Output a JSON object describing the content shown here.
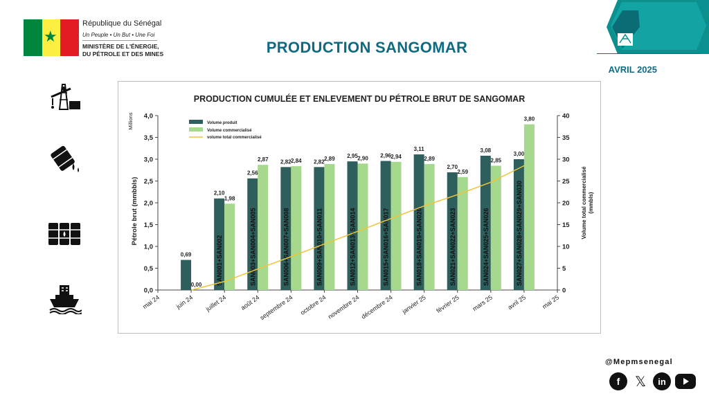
{
  "header": {
    "republic": "République du Sénégal",
    "motto": "Un Peuple • Un But • Une Foi",
    "ministry_line1": "MINISTÈRE DE L'ÉNERGIE,",
    "ministry_line2": "DU PÉTROLE ET DES MINES",
    "title": "PRODUCTION SANGOMAR",
    "date": "AVRIL 2025"
  },
  "colors": {
    "accent": "#0f6b84",
    "produced": "#2e5f5c",
    "sold": "#a6d98e",
    "cumulative": "#f0c43a",
    "flag_green": "#00853f",
    "flag_yellow": "#fdef42",
    "flag_red": "#e31b23"
  },
  "icons": [
    "oil-pump-icon",
    "oil-barrel-spill-icon",
    "oil-barrels-icon",
    "tanker-ship-icon"
  ],
  "footer": {
    "handle": "@Mepmsenegal",
    "social": [
      "facebook-icon",
      "x-icon",
      "linkedin-icon",
      "youtube-icon"
    ],
    "linkedin_glyph": "in"
  },
  "chart_data": {
    "type": "bar",
    "title": "PRODUCTION CUMULÉE ET ENLEVEMENT DU PÉTROLE BRUT DE SANGOMAR",
    "ylabel": "Pétrole brut  (mmbbls)",
    "y_multiplier": "Millions",
    "y2label_line1": "Volume total commercialisé",
    "y2label_line2": "(mmbls)",
    "ylim": [
      0,
      4
    ],
    "y2lim": [
      0,
      40
    ],
    "yticks": [
      "0,0",
      "0,5",
      "1,0",
      "1,5",
      "2,0",
      "2,5",
      "3,0",
      "3,5",
      "4,0"
    ],
    "y2ticks": [
      "0",
      "5",
      "10",
      "15",
      "20",
      "25",
      "30",
      "35",
      "40"
    ],
    "categories": [
      "mai 24",
      "juin 24",
      "juillet 24",
      "août 24",
      "septembre 24",
      "octobre 24",
      "novembre 24",
      "décembre 24",
      "janvier 25",
      "février 25",
      "mars 25",
      "avril 25",
      "mai 25"
    ],
    "series": [
      {
        "name": "Volume produit",
        "values": [
          null,
          0.69,
          2.1,
          2.56,
          2.82,
          2.82,
          2.95,
          2.96,
          3.11,
          2.7,
          3.08,
          3.0,
          null
        ],
        "labels": [
          "",
          "0,69",
          "2,10",
          "2,56",
          "2,82",
          "2,82",
          "2,95",
          "2,96",
          "3,11",
          "2,70",
          "3,08",
          "3,00",
          ""
        ]
      },
      {
        "name": "Volume commercialisé",
        "values": [
          null,
          0.0,
          1.98,
          2.87,
          2.84,
          2.89,
          2.9,
          2.94,
          2.89,
          2.59,
          2.85,
          3.8,
          null
        ],
        "labels": [
          "",
          "0,00",
          "1,98",
          "2,87",
          "2,84",
          "2,89",
          "2,90",
          "2,94",
          "2,89",
          "2,59",
          "2,85",
          "3,80",
          ""
        ]
      },
      {
        "name": "volume total commercialisé",
        "values": [
          null,
          0.0,
          1.98,
          4.85,
          7.69,
          10.58,
          13.48,
          16.42,
          19.31,
          21.9,
          24.75,
          28.55,
          null
        ]
      }
    ],
    "cargo_labels": [
      "",
      "",
      "SAN001+SAN002",
      "SAN003+SAN004+SAN005",
      "SAN006+SAN007+SAN008",
      "SAN009+SAN010+SAN011",
      "SAN012+SAN013+SAN014",
      "SAN015+SAN016+SAN017",
      "SAN018+SAN019+SAN020",
      "SAN021+SAN022+SAN023",
      "SAN024+SAN025+SAN026",
      "SAN027+SAN028+SAN029+SAN030",
      ""
    ],
    "legend_position": "top-left",
    "grid": false
  }
}
